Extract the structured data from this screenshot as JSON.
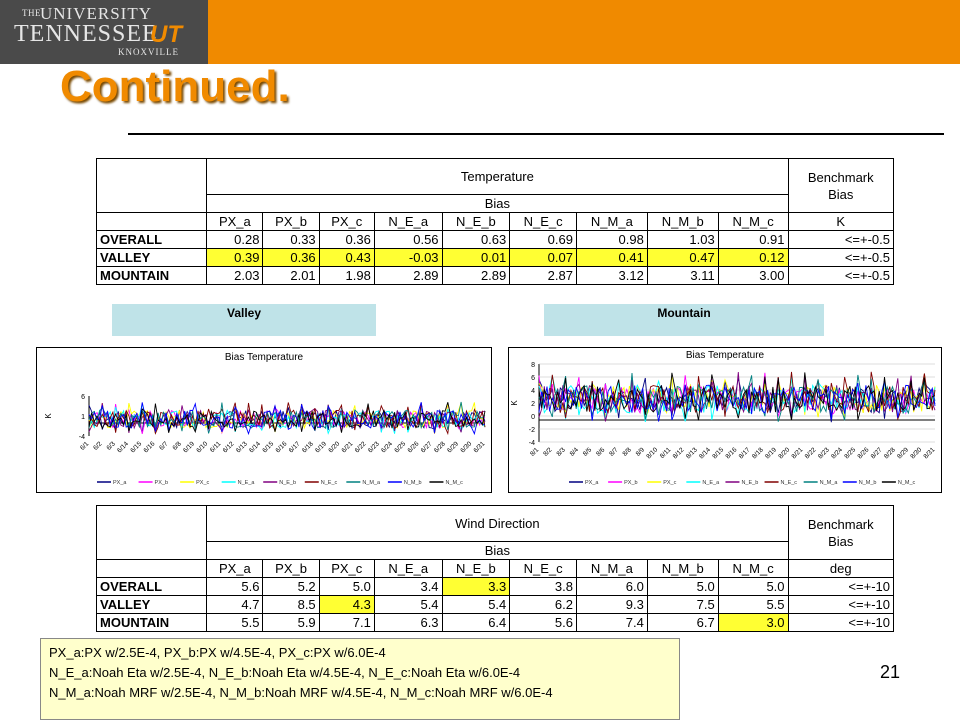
{
  "logo": {
    "the": "THE",
    "university": "UNIVERSITY",
    "of": "of",
    "tennessee": "TENNESSEE",
    "ut": "UT",
    "knoxville": "KNOXVILLE"
  },
  "slide": {
    "title": "Continued.",
    "page_number": "21"
  },
  "col_headers": [
    "PX_a",
    "PX_b",
    "PX_c",
    "N_E_a",
    "N_E_b",
    "N_E_c",
    "N_M_a",
    "N_M_b",
    "N_M_c"
  ],
  "row_labels": [
    "OVERALL",
    "VALLEY",
    "MOUNTAIN"
  ],
  "temperature_table": {
    "title": "Temperature",
    "bias": "Bias",
    "benchmark_line1": "Benchmark",
    "benchmark_line2": "Bias",
    "unit": "K",
    "rows": [
      [
        "0.28",
        "0.33",
        "0.36",
        "0.56",
        "0.63",
        "0.69",
        "0.98",
        "1.03",
        "0.91",
        "<=+-0.5"
      ],
      [
        "0.39",
        "0.36",
        "0.43",
        "-0.03",
        "0.01",
        "0.07",
        "0.41",
        "0.47",
        "0.12",
        "<=+-0.5"
      ],
      [
        "2.03",
        "2.01",
        "1.98",
        "2.89",
        "2.89",
        "2.87",
        "3.12",
        "3.11",
        "3.00",
        "<=+-0.5"
      ]
    ]
  },
  "regions": {
    "valley": "Valley",
    "mountain": "Mountain"
  },
  "valley_chart": {
    "title": "Bias Temperature",
    "ylabel": "K",
    "yticks": [
      "6",
      "1",
      "-4"
    ],
    "xticks": [
      "6/1",
      "6/2",
      "6/3",
      "6/14",
      "6/15",
      "6/16",
      "6/7",
      "6/8",
      "6/19",
      "6/10",
      "6/11",
      "6/12",
      "6/13",
      "6/14",
      "6/15",
      "6/16",
      "6/17",
      "6/18",
      "6/19",
      "6/20",
      "6/21",
      "6/22",
      "6/23",
      "6/24",
      "6/25",
      "6/26",
      "6/27",
      "6/28",
      "6/29",
      "6/30",
      "6/31"
    ],
    "legend": [
      "PX_a",
      "PX_b",
      "PX_c",
      "N_E_a",
      "N_E_b",
      "N_E_c",
      "N_M_a",
      "N_M_b",
      "N_M_c"
    ]
  },
  "mountain_chart": {
    "title": "Bias Temperature",
    "ylabel": "K",
    "yticks": [
      "8",
      "6",
      "4",
      "2",
      "0",
      "-2",
      "-4"
    ],
    "xticks": [
      "8/1",
      "8/2",
      "8/3",
      "8/4",
      "8/5",
      "8/6",
      "8/7",
      "8/8",
      "8/9",
      "8/10",
      "8/11",
      "8/12",
      "8/13",
      "8/14",
      "8/15",
      "8/16",
      "8/17",
      "8/18",
      "8/19",
      "8/20",
      "8/21",
      "8/22",
      "8/23",
      "8/24",
      "8/25",
      "8/26",
      "8/27",
      "8/28",
      "8/29",
      "8/30",
      "8/31"
    ],
    "legend": [
      "PX_a",
      "PX_b",
      "PX_c",
      "N_E_a",
      "N_E_b",
      "N_E_c",
      "N_M_a",
      "N_M_b",
      "N_M_c"
    ]
  },
  "series_colors": [
    "#000080",
    "#ff00ff",
    "#ffff00",
    "#00ffff",
    "#800080",
    "#800000",
    "#008080",
    "#0000ff",
    "#000000"
  ],
  "wind_table": {
    "title": "Wind Direction",
    "bias": "Bias",
    "benchmark_line1": "Benchmark",
    "benchmark_line2": "Bias",
    "unit": "deg",
    "rows": [
      [
        "5.6",
        "5.2",
        "5.0",
        "3.4",
        "3.3",
        "3.8",
        "6.0",
        "5.0",
        "5.0",
        "<=+-10"
      ],
      [
        "4.7",
        "8.5",
        "4.3",
        "5.4",
        "5.4",
        "6.2",
        "9.3",
        "7.5",
        "5.5",
        "<=+-10"
      ],
      [
        "5.5",
        "5.9",
        "7.1",
        "6.3",
        "6.4",
        "5.6",
        "7.4",
        "6.7",
        "3.0",
        "<=+-10"
      ]
    ]
  },
  "notes": [
    "PX_a:PX w/2.5E-4,  PX_b:PX w/4.5E-4, PX_c:PX w/6.0E-4",
    "N_E_a:Noah Eta w/2.5E-4, N_E_b:Noah Eta w/4.5E-4, N_E_c:Noah Eta w/6.0E-4",
    "N_M_a:Noah MRF w/2.5E-4, N_M_b:Noah MRF w/4.5E-4, N_M_c:Noah MRF w/6.0E-4"
  ]
}
